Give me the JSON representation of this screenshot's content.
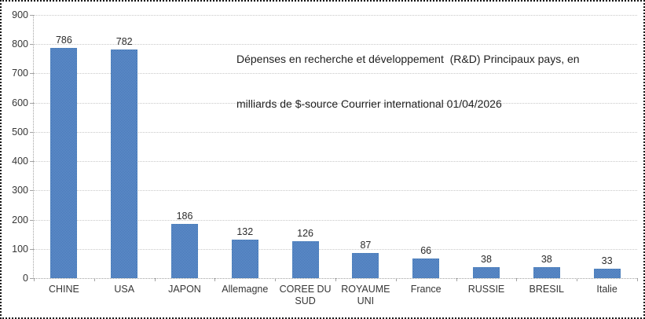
{
  "chart_data": {
    "type": "bar",
    "title": "Dépenses en recherche et développement  (R&D) Principaux pays, en milliards de $-source Courrier international 01/04/2026",
    "title_lines": [
      "Dépenses en recherche et développement  (R&D) Principaux pays, en",
      "milliards de $-source Courrier international 01/04/2026"
    ],
    "categories": [
      "CHINE",
      "USA",
      "JAPON",
      "Allemagne",
      "COREE DU SUD",
      "ROYAUME UNI",
      "France",
      "RUSSIE",
      "BRESIL",
      "Italie"
    ],
    "values": [
      786,
      782,
      186,
      132,
      126,
      87,
      66,
      38,
      38,
      33
    ],
    "xlabel": "",
    "ylabel": "",
    "ylim": [
      0,
      900
    ],
    "yticks": [
      0,
      100,
      200,
      300,
      400,
      500,
      600,
      700,
      800,
      900
    ],
    "grid": true,
    "legend": false,
    "data_labels": true,
    "colors": {
      "bar_fill": "#4f81bd",
      "bar_fill_light": "#6f9ad1",
      "bar_fill_dark": "#3a6db2",
      "gridline": "#c9c9c9",
      "axis": "#a3a3a3",
      "text": "#363636",
      "background": "#ffffff",
      "frame_border": "#161616"
    }
  }
}
